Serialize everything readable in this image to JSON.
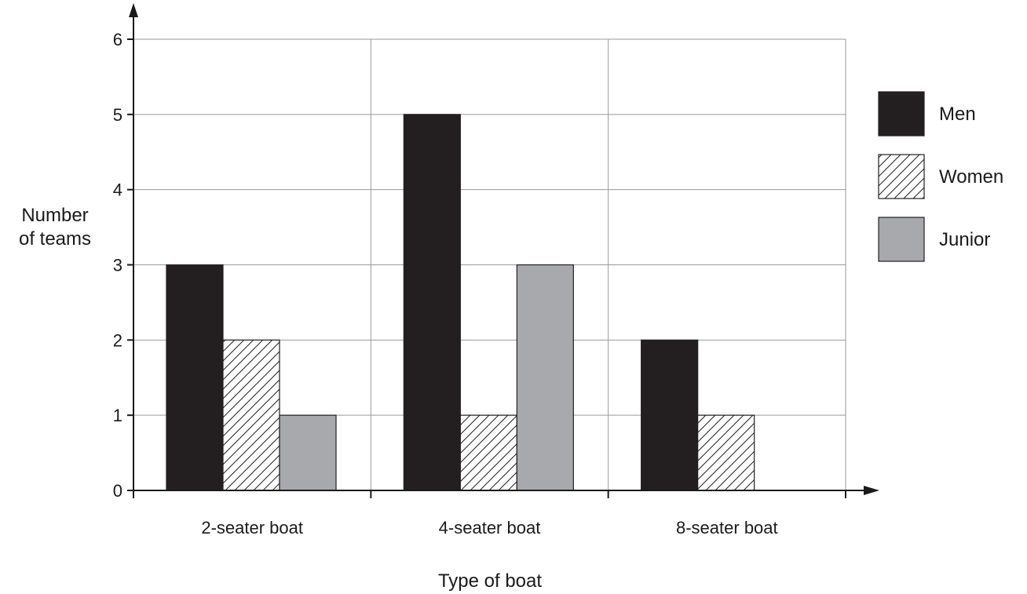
{
  "chart_data": {
    "type": "bar",
    "categories": [
      "2-seater boat",
      "4-seater boat",
      "8-seater boat"
    ],
    "series": [
      {
        "name": "Men",
        "values": [
          3,
          5,
          2
        ],
        "fill": "#231f20",
        "pattern": "solid"
      },
      {
        "name": "Women",
        "values": [
          2,
          1,
          1
        ],
        "fill": "#ffffff",
        "pattern": "hatch"
      },
      {
        "name": "Junior",
        "values": [
          1,
          3,
          0
        ],
        "fill": "#a7a9ac",
        "pattern": "solid"
      }
    ],
    "xlabel": "Type of boat",
    "ylabel_lines": [
      "Number",
      "of teams"
    ],
    "ylim": [
      0,
      6
    ],
    "yticks": [
      0,
      1,
      2,
      3,
      4,
      5,
      6
    ],
    "grid": true,
    "legend_position": "right"
  }
}
